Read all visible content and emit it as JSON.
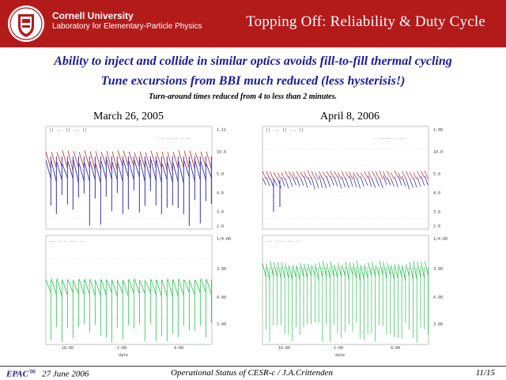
{
  "header": {
    "university": "Cornell University",
    "lab": "Laboratory for Elementary-Particle Physics",
    "title": "Topping Off:  Reliability & Duty Cycle"
  },
  "body": {
    "line1": "Ability to inject and collide in similar optics avoids fill-to-fill thermal cycling",
    "line2": "Tune excursions from BBI much reduced (less hysterisis!)",
    "line3": "Turn-around times reduced from 4  to less than 2 minutes."
  },
  "plots": [
    {
      "label": "March 26, 2005",
      "upper_right_ticks": [
        "1.11",
        "10.0",
        "5.0",
        "4.0",
        "3.0",
        "2.0"
      ],
      "lower_right_ticks": [
        "1/4.00",
        "3.00",
        "4.00",
        "3.00"
      ],
      "x_ticks": [
        "16:00",
        "2:00",
        "4:00"
      ],
      "spikes": 30
    },
    {
      "label": "April 8, 2006",
      "upper_right_ticks": [
        "1.00",
        "10.0",
        "5.0",
        "4.0",
        "3.0",
        "2.0"
      ],
      "lower_right_ticks": [
        "1/4.00",
        "3.00",
        "4.00",
        "3.00"
      ],
      "x_ticks": [
        "16:00",
        "2:00",
        "4:00"
      ],
      "spikes": 44
    }
  ],
  "colors": {
    "header_bg": "#b31b1b",
    "heading_text": "#1a1a9c",
    "trace_red": "#c02020",
    "trace_blue": "#1c1ca8",
    "trace_green": "#22c04a"
  },
  "footer": {
    "conf": "EPAC",
    "conf_year": "'06",
    "date": "27 June 2006",
    "center": "Operational Status of CESR-c / J.A.Crittenden",
    "page": "11/15"
  }
}
